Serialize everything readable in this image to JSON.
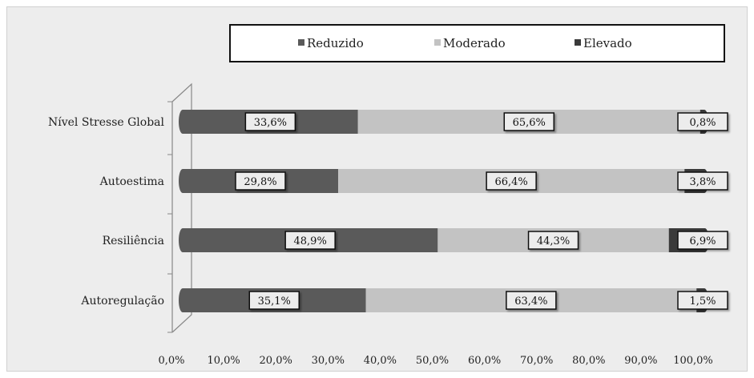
{
  "chart_data": {
    "type": "bar",
    "orientation": "horizontal",
    "stacked": true,
    "percent_stacked": true,
    "categories": [
      "Nível Stresse Global",
      "Autoestima",
      "Resiliência",
      "Autoregulação"
    ],
    "series": [
      {
        "name": "Reduzido",
        "values": [
          33.6,
          29.8,
          48.9,
          35.1
        ],
        "labels": [
          "33,6%",
          "29,8%",
          "48,9%",
          "35,1%"
        ],
        "color": "#5a5a5a"
      },
      {
        "name": "Moderado",
        "values": [
          65.6,
          66.4,
          44.3,
          63.4
        ],
        "labels": [
          "65,6%",
          "66,4%",
          "44,3%",
          "63,4%"
        ],
        "color": "#c3c3c3"
      },
      {
        "name": "Elevado",
        "values": [
          0.8,
          3.8,
          6.9,
          1.5
        ],
        "labels": [
          "0,8%",
          "3,8%",
          "6,9%",
          "1,5%"
        ],
        "color": "#3a3a3a"
      }
    ],
    "x_ticks": [
      "0,0%",
      "10,0%",
      "20,0%",
      "30,0%",
      "40,0%",
      "50,0%",
      "60,0%",
      "70,0%",
      "80,0%",
      "90,0%",
      "100,0%"
    ],
    "xlim": [
      0,
      100
    ],
    "title": "",
    "xlabel": "",
    "ylabel": "",
    "legend_position": "top",
    "grid": false,
    "background_color": "#ededed"
  }
}
